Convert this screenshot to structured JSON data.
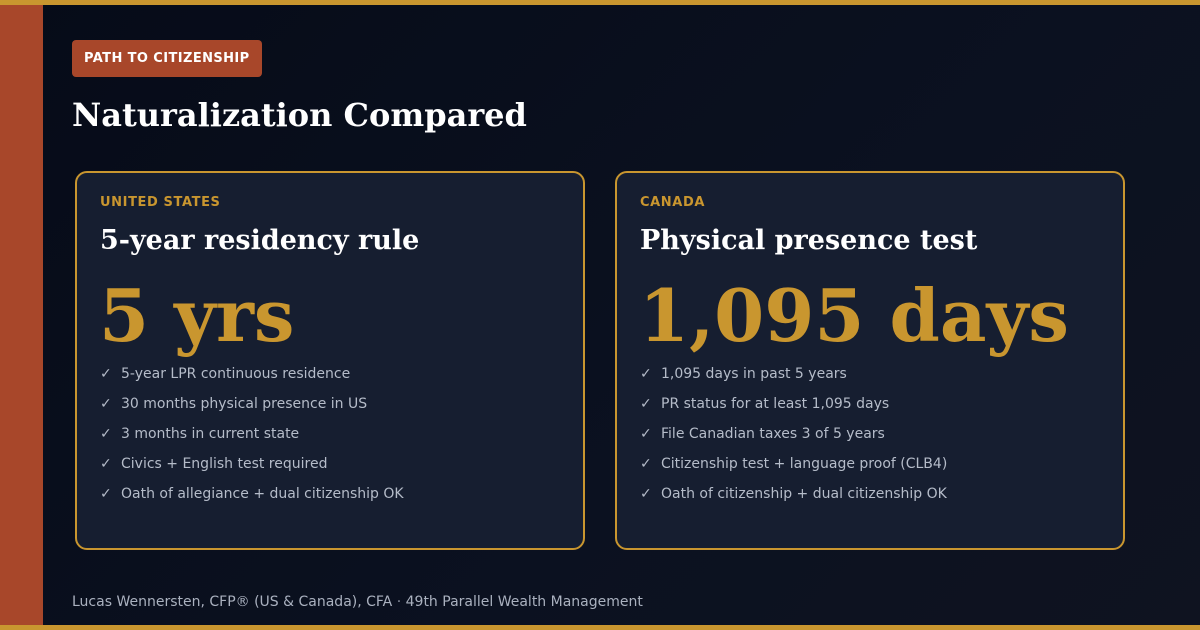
{
  "badge": "PATH TO CITIZENSHIP",
  "title": "Naturalization Compared",
  "check_glyph": "✓",
  "cards": [
    {
      "country": "UNITED STATES",
      "rule": "5-year residency rule",
      "stat": "5 yrs",
      "items": [
        "5-year LPR continuous residence",
        "30 months physical presence in US",
        "3 months in current state",
        "Civics + English test required",
        "Oath of allegiance + dual citizenship OK"
      ]
    },
    {
      "country": "CANADA",
      "rule": "Physical presence test",
      "stat": "1,095 days",
      "items": [
        "1,095 days in past 5 years",
        "PR status for at least 1,095 days",
        "File Canadian taxes 3 of 5 years",
        "Citizenship test + language proof (CLB4)",
        "Oath of citizenship + dual citizenship OK"
      ]
    }
  ],
  "footer": {
    "author": "Lucas Wennersten, CFP® (US & Canada), CFA",
    "separator": "·",
    "firm": "49th Parallel Wealth Management"
  },
  "colors": {
    "gold": "#c9962f",
    "rust": "#a8472a",
    "card_bg": "#161e30",
    "page_bg": "#060b18"
  }
}
